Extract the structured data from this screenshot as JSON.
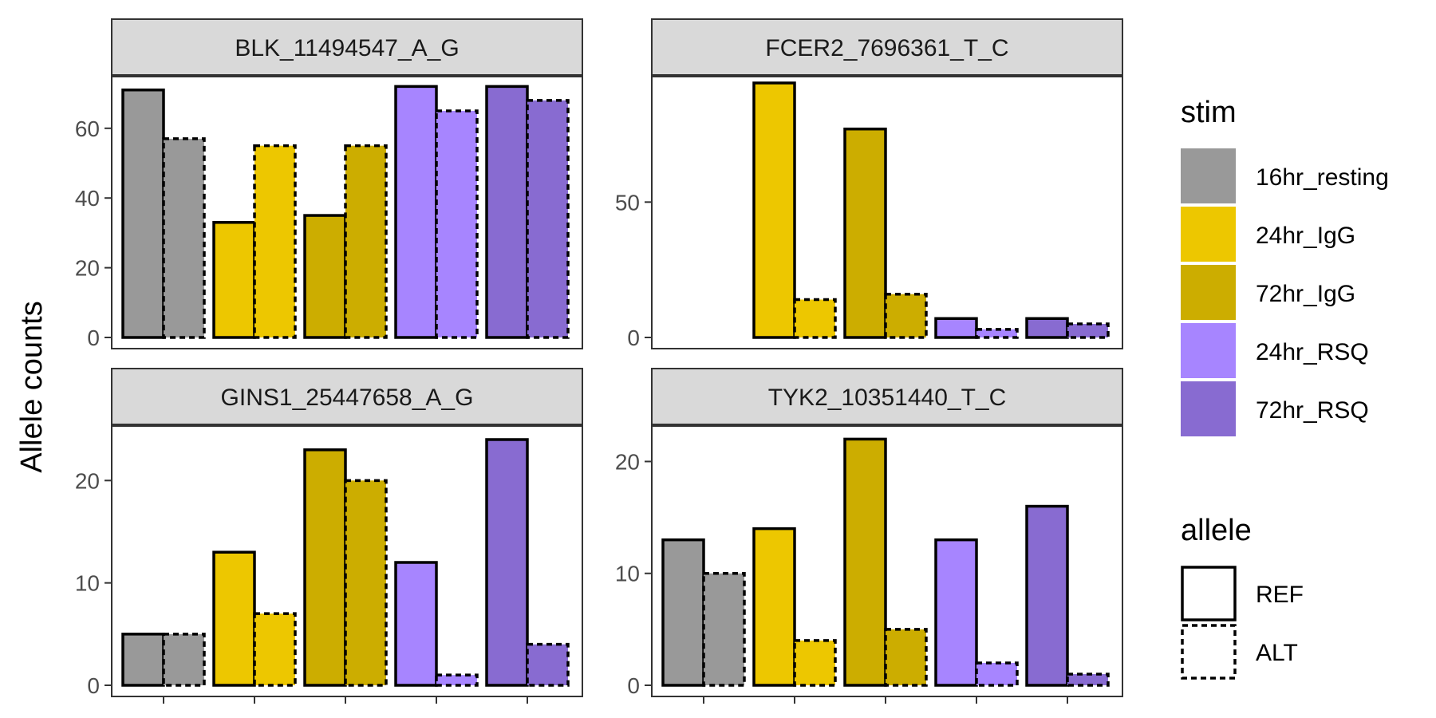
{
  "chart_data": {
    "type": "bar",
    "ylabel": "Allele counts",
    "xlabel": "",
    "stim_levels": [
      "16hr_resting",
      "24hr_IgG",
      "72hr_IgG",
      "24hr_RSQ",
      "72hr_RSQ"
    ],
    "allele_levels": [
      "REF",
      "ALT"
    ],
    "colors": {
      "16hr_resting": "#999999",
      "24hr_IgG": "#EDC700",
      "72hr_IgG": "#CCAD00",
      "24hr_RSQ": "#A785FF",
      "72hr_RSQ": "#886BD1"
    },
    "panels": [
      {
        "title": "BLK_11494547_A_G",
        "ylim": [
          0,
          73
        ],
        "yticks": [
          0,
          20,
          40,
          60
        ],
        "series": [
          {
            "name": "REF",
            "values": [
              71,
              33,
              35,
              72,
              72
            ]
          },
          {
            "name": "ALT",
            "values": [
              57,
              55,
              55,
              65,
              68
            ]
          }
        ]
      },
      {
        "title": "FCER2_7696361_T_C",
        "ylim": [
          0,
          94
        ],
        "yticks": [
          0,
          50
        ],
        "series": [
          {
            "name": "REF",
            "values": [
              null,
              94,
              77,
              7,
              7
            ]
          },
          {
            "name": "ALT",
            "values": [
              null,
              14,
              16,
              3,
              5
            ]
          }
        ]
      },
      {
        "title": "GINS1_25447658_A_G",
        "ylim": [
          0,
          24.7
        ],
        "yticks": [
          0,
          10,
          20
        ],
        "series": [
          {
            "name": "REF",
            "values": [
              5,
              13,
              23,
              12,
              24
            ]
          },
          {
            "name": "ALT",
            "values": [
              5,
              7,
              20,
              1,
              4
            ]
          }
        ]
      },
      {
        "title": "TYK2_10351440_T_C",
        "ylim": [
          0,
          22.6
        ],
        "yticks": [
          0,
          10,
          20
        ],
        "series": [
          {
            "name": "REF",
            "values": [
              13,
              14,
              22,
              13,
              16
            ]
          },
          {
            "name": "ALT",
            "values": [
              10,
              4,
              5,
              2,
              1
            ]
          }
        ]
      }
    ]
  },
  "legend": {
    "stim_title": "stim",
    "allele_title": "allele"
  }
}
